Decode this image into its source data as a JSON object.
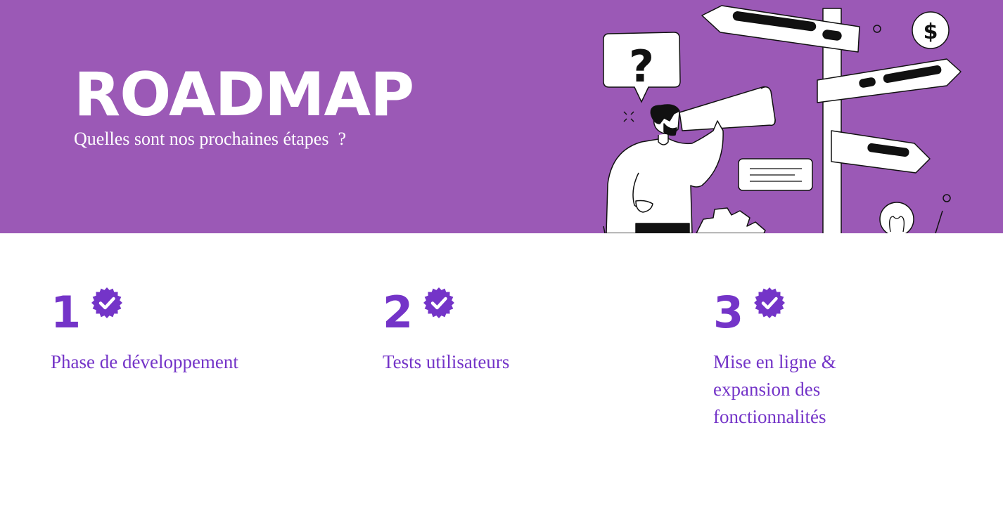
{
  "colors": {
    "banner": "#9b59b6",
    "accent": "#7434c8",
    "ink": "#111111",
    "white": "#ffffff"
  },
  "header": {
    "title": "ROADMAP",
    "subtitle": "Quelles sont nos prochaines étapes  ?"
  },
  "illustration": {
    "question_mark": "?",
    "dollar_sign": "$",
    "icons": [
      "signpost-icon",
      "person-telescope-icon",
      "question-bubble-icon",
      "dollar-coin-icon",
      "gear-icon",
      "lightbulb-icon",
      "note-card-icon"
    ]
  },
  "steps": [
    {
      "number": "1",
      "label": "Phase de développement",
      "icon": "verified-badge-icon"
    },
    {
      "number": "2",
      "label": "Tests utilisateurs",
      "icon": "verified-badge-icon"
    },
    {
      "number": "3",
      "label": "Mise en ligne & expansion des fonctionnalités",
      "icon": "verified-badge-icon"
    }
  ]
}
